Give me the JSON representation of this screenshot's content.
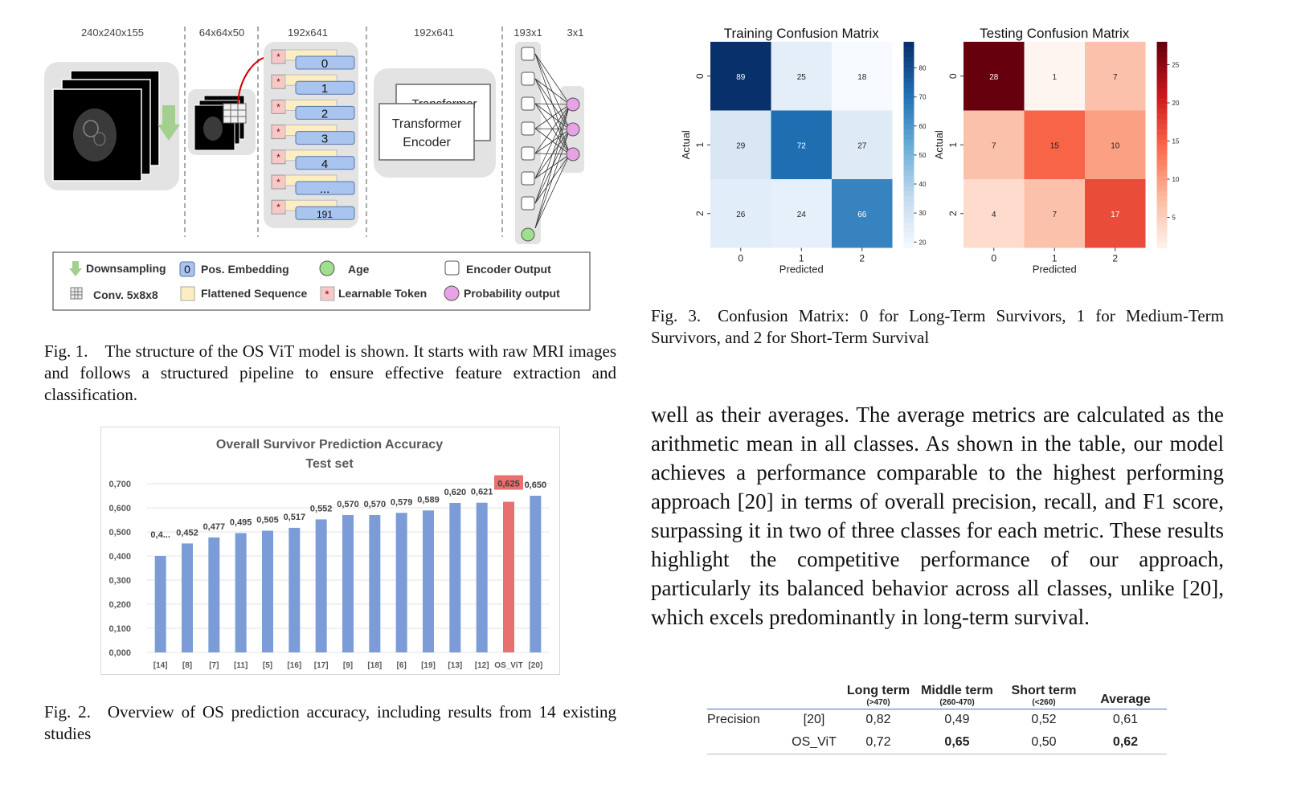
{
  "fig1": {
    "dims": [
      "240x240x155",
      "64x64x50",
      "192x641",
      "192x641",
      "193x1",
      "3x1"
    ],
    "tokens": [
      "0",
      "1",
      "2",
      "3",
      "4",
      "...",
      "191"
    ],
    "transformer_back": "Transformer",
    "transformer_front_line1": "Transformer",
    "transformer_front_line2": "Encoder",
    "legend": {
      "downsampling": "Downsampling",
      "pos_embedding_glyph": "0",
      "pos_embedding": "Pos. Embedding",
      "age": "Age",
      "encoder_output": "Encoder Output",
      "conv": "Conv. 5x8x8",
      "flattened": "Flattened Sequence",
      "learnable": "Learnable Token",
      "learnable_glyph": "*",
      "probability": "Probability output"
    },
    "caption": "Fig. 1. The structure of the OS ViT model is shown. It starts with raw MRI images and follows a structured pipeline to ensure effective feature extraction and classification."
  },
  "fig2": {
    "caption": "Fig. 2. Overview of OS prediction accuracy, including results from 14 existing studies"
  },
  "fig3": {
    "caption": "Fig. 3. Confusion Matrix: 0 for Long-Term Survivors, 1 for Medium-Term Survivors, and 2 for Short-Term Survival"
  },
  "body_paragraph": "well as their averages. The average metrics are calculated as the arithmetic mean in all classes. As shown in the table, our model achieves a performance comparable to the highest performing approach [20] in terms of overall precision, recall, and F1 score, surpassing it in two of three classes for each metric. These results highlight the competitive performance of our approach, particularly its balanced behavior across all classes, unlike [20], which excels predominantly in long-term survival.",
  "table": {
    "headers": [
      {
        "title": "Long term",
        "sub": "(>470)"
      },
      {
        "title": "Middle term",
        "sub": "(260-470)"
      },
      {
        "title": "Short term",
        "sub": "(<260)"
      },
      {
        "title": "Average",
        "sub": ""
      }
    ],
    "metric": "Precision",
    "rows": [
      {
        "method": "[20]",
        "values": [
          "0,82",
          "0,49",
          "0,52",
          "0,61"
        ]
      },
      {
        "method": "OS_ViT",
        "values": [
          "0,72",
          "0,65",
          "0,50",
          "0,62"
        ]
      }
    ]
  },
  "colors": {
    "bar_blue": "#7b9cd6",
    "bar_red": "#e8706e",
    "token_blue": "#a9c4ef",
    "token_yellow": "#fdeec2",
    "token_pink": "#f6c9c9",
    "probability": "#e7a3e6",
    "age": "#9fe08f"
  },
  "chart_data": [
    {
      "type": "bar",
      "title": "Overall Survivor Prediction Accuracy",
      "subtitle": "Test set",
      "categories": [
        "[14]",
        "[8]",
        "[7]",
        "[11]",
        "[5]",
        "[16]",
        "[17]",
        "[9]",
        "[18]",
        "[6]",
        "[19]",
        "[13]",
        "[12]",
        "OS_ViT",
        "[20]"
      ],
      "values": [
        0.4,
        0.452,
        0.477,
        0.495,
        0.505,
        0.517,
        0.552,
        0.57,
        0.57,
        0.579,
        0.589,
        0.62,
        0.621,
        0.625,
        0.65
      ],
      "value_labels": [
        "0,4...",
        "0,452",
        "0,477",
        "0,495",
        "0,505",
        "0,517",
        "0,552",
        "0,570",
        "0,570",
        "0,579",
        "0,589",
        "0,620",
        "0,621",
        "0,625",
        "0,650"
      ],
      "highlight": "OS_ViT",
      "yticks": [
        "0,000",
        "0,100",
        "0,200",
        "0,300",
        "0,400",
        "0,500",
        "0,600",
        "0,700"
      ],
      "ylim": [
        0,
        0.7
      ],
      "grid": true
    },
    {
      "type": "heatmap",
      "title": "Training Confusion Matrix",
      "xlabel": "Predicted",
      "ylabel": "Actual",
      "x_ticks": [
        "0",
        "1",
        "2"
      ],
      "y_ticks": [
        "0",
        "1",
        "2"
      ],
      "matrix": [
        [
          89,
          25,
          18
        ],
        [
          29,
          72,
          27
        ],
        [
          26,
          24,
          66
        ]
      ],
      "colormap": "Blues",
      "colorbar_ticks": [
        "20",
        "30",
        "40",
        "50",
        "60",
        "70",
        "80"
      ],
      "range": [
        18,
        89
      ]
    },
    {
      "type": "heatmap",
      "title": "Testing Confusion Matrix",
      "xlabel": "Predicted",
      "ylabel": "Actual",
      "x_ticks": [
        "0",
        "1",
        "2"
      ],
      "y_ticks": [
        "0",
        "1",
        "2"
      ],
      "matrix": [
        [
          28,
          1,
          7
        ],
        [
          7,
          15,
          10
        ],
        [
          4,
          7,
          17
        ]
      ],
      "colormap": "Reds",
      "colorbar_ticks": [
        "5",
        "10",
        "15",
        "20",
        "25"
      ],
      "range": [
        1,
        28
      ]
    }
  ]
}
